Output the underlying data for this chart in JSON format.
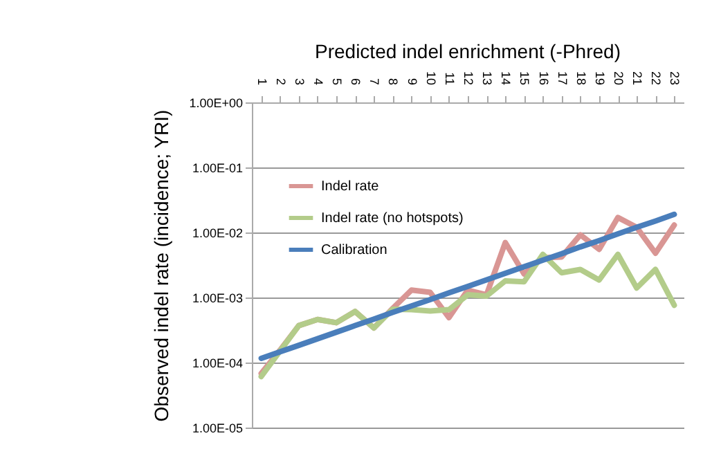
{
  "chart_data": {
    "type": "line",
    "title": "Predicted indel enrichment (-Phred)",
    "ylabel": "Observed indel rate (incidence; YRI)",
    "categories": [
      "1",
      "2",
      "3",
      "4",
      "5",
      "6",
      "7",
      "8",
      "9",
      "10",
      "11",
      "12",
      "13",
      "14",
      "15",
      "16",
      "17",
      "18",
      "19",
      "20",
      "21",
      "22",
      "23"
    ],
    "series": [
      {
        "name": "Indel rate",
        "color": "#d99694",
        "values": [
          6.8e-05,
          0.000155,
          0.00037,
          0.00046,
          0.00041,
          0.00061,
          0.00034,
          0.00068,
          0.0013,
          0.0012,
          0.00049,
          0.0013,
          0.0011,
          0.007,
          0.0023,
          0.0041,
          0.0042,
          0.0092,
          0.0055,
          0.017,
          0.012,
          0.0048,
          0.013
        ]
      },
      {
        "name": "Indel rate (no hotspots)",
        "color": "#b3cc8a",
        "values": [
          6.1e-05,
          0.00015,
          0.00037,
          0.00046,
          0.00041,
          0.00061,
          0.00034,
          0.00066,
          0.00065,
          0.00062,
          0.00065,
          0.0011,
          0.00105,
          0.0018,
          0.00175,
          0.0046,
          0.0024,
          0.0027,
          0.00186,
          0.0046,
          0.0014,
          0.0027,
          0.00076
        ]
      },
      {
        "name": "Calibration",
        "color": "#4a7ebb",
        "values": [
          0.000116,
          0.000146,
          0.000184,
          0.000232,
          0.000293,
          0.00037,
          0.000466,
          0.00059,
          0.00074,
          0.00093,
          0.00118,
          0.00148,
          0.00187,
          0.00236,
          0.00297,
          0.00375,
          0.0047,
          0.006,
          0.0075,
          0.0095,
          0.012,
          0.015,
          0.019
        ]
      }
    ],
    "log": true,
    "ylim": [
      1e-05,
      1
    ],
    "yticks": [
      {
        "value": 1e-05,
        "label": "1.00E-05"
      },
      {
        "value": 0.0001,
        "label": "1.00E-04"
      },
      {
        "value": 0.001,
        "label": "1.00E-03"
      },
      {
        "value": 0.01,
        "label": "1.00E-02"
      },
      {
        "value": 0.1,
        "label": "1.00E-01"
      },
      {
        "value": 1,
        "label": "1.00E+00"
      }
    ],
    "grid": "y",
    "legend": "top left",
    "marker": "none",
    "line_style": "solid"
  }
}
